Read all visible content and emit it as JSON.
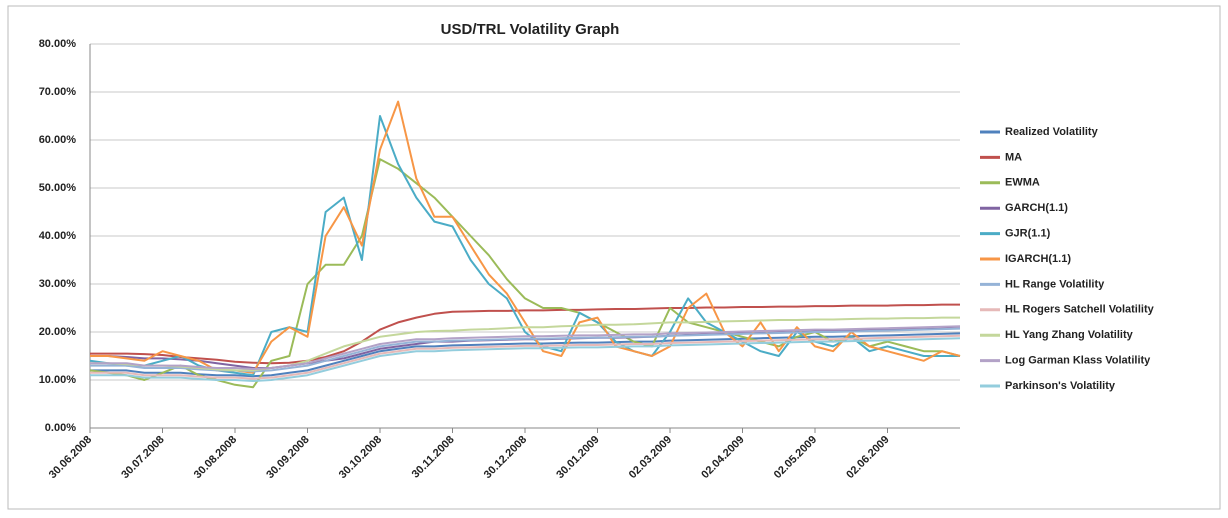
{
  "chart_data": {
    "type": "line",
    "title": "USD/TRL Volatility Graph",
    "categories": [
      "30.06.2008",
      null,
      null,
      null,
      "30.07.2008",
      null,
      null,
      null,
      "30.08.2008",
      null,
      null,
      null,
      "30.09.2008",
      null,
      null,
      null,
      "30.10.2008",
      null,
      null,
      null,
      "30.11.2008",
      null,
      null,
      null,
      "30.12.2008",
      null,
      null,
      null,
      "30.01.2009",
      null,
      null,
      null,
      "02.03.2009",
      null,
      null,
      null,
      "02.04.2009",
      null,
      null,
      null,
      "02.05.2009",
      null,
      null,
      null,
      "02.06.2009",
      null,
      null,
      null,
      null
    ],
    "series": [
      {
        "name": "Realized Volatility",
        "color": "#4f81bd",
        "values": [
          12,
          12,
          12,
          11.5,
          11.5,
          11.5,
          11.2,
          11,
          11,
          10.8,
          11,
          11.5,
          12,
          13,
          14,
          15,
          16,
          16.5,
          17,
          17,
          17.2,
          17.3,
          17.4,
          17.5,
          17.6,
          17.6,
          17.7,
          17.8,
          17.8,
          17.9,
          18,
          18,
          18.2,
          18.3,
          18.4,
          18.5,
          18.6,
          18.7,
          18.8,
          18.9,
          19,
          19,
          19.1,
          19.2,
          19.3,
          19.4,
          19.5,
          19.6,
          19.7
        ]
      },
      {
        "name": "MA",
        "color": "#c0504d",
        "values": [
          15.5,
          15.5,
          15.5,
          15.4,
          15.2,
          14.8,
          14.5,
          14.2,
          13.8,
          13.6,
          13.5,
          13.6,
          14.0,
          14.8,
          16.0,
          18.0,
          20.5,
          22.0,
          23.0,
          23.8,
          24.2,
          24.3,
          24.4,
          24.4,
          24.5,
          24.5,
          24.6,
          24.6,
          24.7,
          24.8,
          24.8,
          24.9,
          25.0,
          25.0,
          25.1,
          25.1,
          25.2,
          25.2,
          25.3,
          25.3,
          25.4,
          25.4,
          25.5,
          25.5,
          25.5,
          25.6,
          25.6,
          25.7,
          25.7
        ]
      },
      {
        "name": "EWMA",
        "color": "#9bbb59",
        "values": [
          12,
          11.5,
          11,
          10,
          11.5,
          13,
          11,
          10,
          9,
          8.5,
          14,
          15,
          30,
          34,
          34,
          40,
          56,
          54,
          51,
          48,
          44,
          40,
          36,
          31,
          27,
          25,
          25,
          24,
          22,
          20,
          18,
          17,
          25,
          22,
          21,
          20,
          19,
          18,
          17,
          19,
          20,
          18,
          19,
          17,
          18,
          17,
          16,
          16,
          15
        ]
      },
      {
        "name": "GARCH(1.1)",
        "color": "#8064a2",
        "values": [
          15,
          15,
          14.8,
          14.5,
          14.5,
          14.3,
          14,
          13.5,
          13,
          12.5,
          12.5,
          13,
          13.5,
          14,
          14.5,
          15.5,
          16.5,
          17,
          17.5,
          18,
          18,
          18.2,
          18.3,
          18.4,
          18.5,
          18.5,
          18.6,
          18.7,
          18.8,
          18.8,
          18.9,
          19,
          19.2,
          19.4,
          19.5,
          19.6,
          19.7,
          19.8,
          19.9,
          20,
          20.1,
          20.2,
          20.3,
          20.4,
          20.5,
          20.6,
          20.6,
          20.7,
          20.8
        ]
      },
      {
        "name": "GJR(1.1)",
        "color": "#4bacc6",
        "values": [
          14,
          13.5,
          13,
          13,
          14,
          15,
          13,
          12,
          11.5,
          11,
          20,
          21,
          20,
          45,
          48,
          35,
          65,
          55,
          48,
          43,
          42,
          35,
          30,
          27,
          20,
          17,
          16,
          24,
          22,
          18,
          16,
          15,
          20,
          27,
          22,
          20,
          18,
          16,
          15,
          20,
          18,
          17,
          19,
          16,
          17,
          16,
          15,
          15,
          15
        ]
      },
      {
        "name": "IGARCH(1.1)",
        "color": "#f79646",
        "values": [
          15,
          15,
          14.5,
          14,
          16,
          15,
          14,
          12,
          12,
          11.5,
          18,
          21,
          19,
          40,
          46,
          38,
          58,
          68,
          52,
          44,
          44,
          38,
          32,
          28,
          22,
          16,
          15,
          22,
          23,
          17,
          16,
          15,
          17,
          25,
          28,
          20,
          17,
          22,
          16,
          21,
          17,
          16,
          20,
          17,
          16,
          15,
          14,
          16,
          15
        ]
      },
      {
        "name": "HL Range Volatility",
        "color": "#95b3d7",
        "values": [
          13,
          13,
          13,
          12.5,
          12.5,
          12.5,
          12.2,
          12,
          12,
          11.8,
          12,
          12.5,
          13,
          14,
          15,
          16,
          17,
          17.5,
          18,
          18,
          18.2,
          18.3,
          18.4,
          18.5,
          18.6,
          18.6,
          18.7,
          18.8,
          18.8,
          18.9,
          19,
          19,
          19.2,
          19.3,
          19.4,
          19.5,
          19.6,
          19.7,
          19.8,
          19.9,
          20,
          20,
          20.1,
          20.2,
          20.3,
          20.4,
          20.5,
          20.6,
          20.7
        ]
      },
      {
        "name": "HL Rogers Satchell Volatility",
        "color": "#e6b9b8",
        "values": [
          11.5,
          11.5,
          11.5,
          11,
          11,
          11,
          10.7,
          10.5,
          10.5,
          10.3,
          10.5,
          11,
          11.5,
          12.5,
          13.5,
          14.5,
          15.5,
          16,
          16.5,
          16.5,
          16.7,
          16.8,
          16.9,
          17,
          17.1,
          17.1,
          17.2,
          17.3,
          17.3,
          17.4,
          17.5,
          17.5,
          17.7,
          17.8,
          17.9,
          18,
          18.1,
          18.2,
          18.3,
          18.4,
          18.5,
          18.5,
          18.6,
          18.7,
          18.8,
          18.9,
          19,
          19.1,
          19.2
        ]
      },
      {
        "name": "HL Yang Zhang Volatility",
        "color": "#c4d79b",
        "values": [
          13.5,
          13.5,
          13.3,
          13,
          13,
          12.8,
          12.5,
          12.2,
          12,
          12,
          12.5,
          13,
          14,
          15.5,
          17,
          18,
          19,
          19.5,
          20,
          20.2,
          20.3,
          20.5,
          20.6,
          20.8,
          21,
          21,
          21.2,
          21.3,
          21.5,
          21.5,
          21.6,
          21.8,
          22,
          22,
          22.1,
          22.2,
          22.3,
          22.4,
          22.5,
          22.5,
          22.6,
          22.6,
          22.7,
          22.8,
          22.8,
          22.9,
          22.9,
          23,
          23
        ]
      },
      {
        "name": "Log Garman Klass Volatility",
        "color": "#b3a2c7",
        "values": [
          13.5,
          13.5,
          13.5,
          13,
          13,
          13,
          12.7,
          12.5,
          12.5,
          12.3,
          12.5,
          13,
          13.5,
          14.5,
          15.5,
          16.5,
          17.5,
          18,
          18.5,
          18.5,
          18.7,
          18.8,
          18.9,
          19,
          19.1,
          19.1,
          19.2,
          19.3,
          19.3,
          19.4,
          19.5,
          19.5,
          19.7,
          19.8,
          19.9,
          20,
          20.1,
          20.2,
          20.3,
          20.4,
          20.5,
          20.5,
          20.6,
          20.7,
          20.8,
          20.9,
          21,
          21.1,
          21.2
        ]
      },
      {
        "name": "Parkinson's Volatility",
        "color": "#93cddd",
        "values": [
          11,
          11,
          11,
          10.5,
          10.5,
          10.5,
          10.2,
          10,
          10,
          9.8,
          10,
          10.5,
          11,
          12,
          13,
          14,
          15,
          15.5,
          16,
          16,
          16.2,
          16.3,
          16.4,
          16.5,
          16.6,
          16.6,
          16.7,
          16.8,
          16.8,
          16.9,
          17,
          17,
          17.2,
          17.3,
          17.4,
          17.5,
          17.6,
          17.7,
          17.8,
          17.9,
          18,
          18,
          18.1,
          18.2,
          18.3,
          18.4,
          18.5,
          18.6,
          18.7
        ]
      }
    ],
    "ylim": [
      0,
      80
    ],
    "yticks": [
      {
        "value": 0,
        "label": "0.00%"
      },
      {
        "value": 10,
        "label": "10.00%"
      },
      {
        "value": 20,
        "label": "20.00%"
      },
      {
        "value": 30,
        "label": "30.00%"
      },
      {
        "value": 40,
        "label": "40.00%"
      },
      {
        "value": 50,
        "label": "50.00%"
      },
      {
        "value": 60,
        "label": "60.00%"
      },
      {
        "value": 70,
        "label": "70.00%"
      },
      {
        "value": 80,
        "label": "80.00%"
      }
    ],
    "grid": true,
    "legend": "right"
  }
}
